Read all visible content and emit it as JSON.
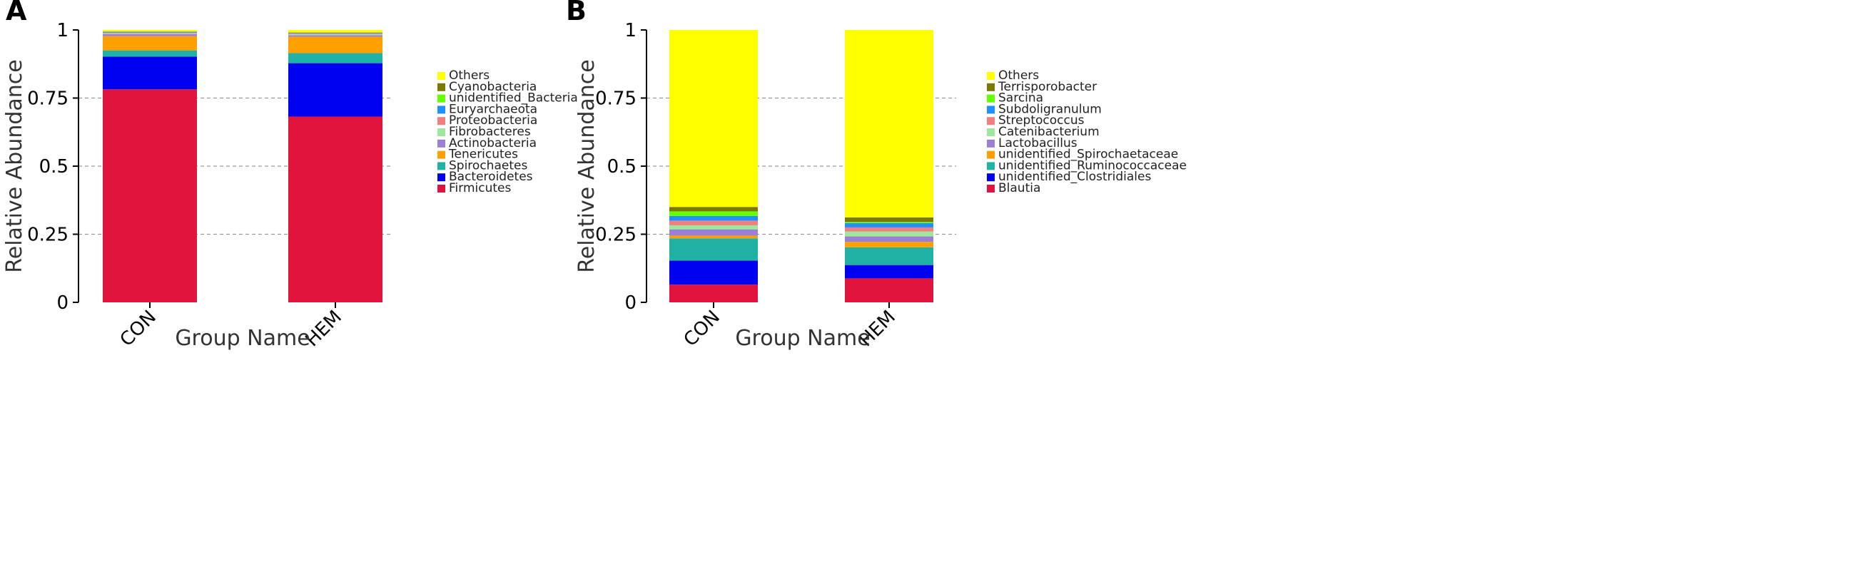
{
  "chart_data": [
    {
      "panel": "A",
      "type": "bar",
      "stacked": true,
      "ylabel": "Relative Abundance",
      "xlabel": "Group Name",
      "ylim": [
        0,
        1
      ],
      "yticks": [
        "0",
        "0.25",
        "0.5",
        "0.75",
        "1"
      ],
      "ytick_values": [
        0,
        0.25,
        0.5,
        0.75,
        1
      ],
      "categories": [
        "CON",
        "HEM"
      ],
      "series": [
        {
          "name": "Firmicutes",
          "color": "#e0143c",
          "values": [
            0.782,
            0.682
          ]
        },
        {
          "name": "Bacteroidetes",
          "color": "#0000f0",
          "values": [
            0.12,
            0.196
          ]
        },
        {
          "name": "Spirochaetes",
          "color": "#20b2a4",
          "values": [
            0.023,
            0.037
          ]
        },
        {
          "name": "Tenericutes",
          "color": "#ffa000",
          "values": [
            0.052,
            0.06
          ]
        },
        {
          "name": "Actinobacteria",
          "color": "#9a7fd4",
          "values": [
            0.008,
            0.006
          ]
        },
        {
          "name": "Fibrobacteres",
          "color": "#9ee89e",
          "values": [
            0.003,
            0.003
          ]
        },
        {
          "name": "Proteobacteria",
          "color": "#f08080",
          "values": [
            0.003,
            0.003
          ]
        },
        {
          "name": "Euryarchaeota",
          "color": "#1e90ff",
          "values": [
            0.002,
            0.002
          ]
        },
        {
          "name": "unidentified_Bacteria",
          "color": "#66ff00",
          "values": [
            0.001,
            0.001
          ]
        },
        {
          "name": "Cyanobacteria",
          "color": "#7a7a00",
          "values": [
            0.001,
            0.001
          ]
        },
        {
          "name": "Others",
          "color": "#ffff00",
          "values": [
            0.005,
            0.009
          ]
        }
      ]
    },
    {
      "panel": "B",
      "type": "bar",
      "stacked": true,
      "ylabel": "Relative Abundance",
      "xlabel": "Group Name",
      "ylim": [
        0,
        1
      ],
      "yticks": [
        "0",
        "0.25",
        "0.5",
        "0.75",
        "1"
      ],
      "ytick_values": [
        0,
        0.25,
        0.5,
        0.75,
        1
      ],
      "categories": [
        "CON",
        "HEM"
      ],
      "series": [
        {
          "name": "Blautia",
          "color": "#e0143c",
          "values": [
            0.065,
            0.088
          ]
        },
        {
          "name": "unidentified_Clostridiales",
          "color": "#0000f0",
          "values": [
            0.088,
            0.049
          ]
        },
        {
          "name": "unidentified_Ruminococcaceae",
          "color": "#20b2a4",
          "values": [
            0.082,
            0.065
          ]
        },
        {
          "name": "unidentified_Spirochaetaceae",
          "color": "#ffa000",
          "values": [
            0.01,
            0.02
          ]
        },
        {
          "name": "Lactobacillus",
          "color": "#9a7fd4",
          "values": [
            0.023,
            0.02
          ]
        },
        {
          "name": "Catenibacterium",
          "color": "#9ee89e",
          "values": [
            0.015,
            0.018
          ]
        },
        {
          "name": "Streptococcus",
          "color": "#f08080",
          "values": [
            0.017,
            0.015
          ]
        },
        {
          "name": "Subdoligranulum",
          "color": "#1e90ff",
          "values": [
            0.017,
            0.016
          ]
        },
        {
          "name": "Sarcina",
          "color": "#66ff00",
          "values": [
            0.017,
            0.004
          ]
        },
        {
          "name": "Terrisporobacter",
          "color": "#7a7a00",
          "values": [
            0.016,
            0.017
          ]
        },
        {
          "name": "Others",
          "color": "#ffff00",
          "values": [
            0.65,
            0.688
          ]
        }
      ]
    }
  ]
}
